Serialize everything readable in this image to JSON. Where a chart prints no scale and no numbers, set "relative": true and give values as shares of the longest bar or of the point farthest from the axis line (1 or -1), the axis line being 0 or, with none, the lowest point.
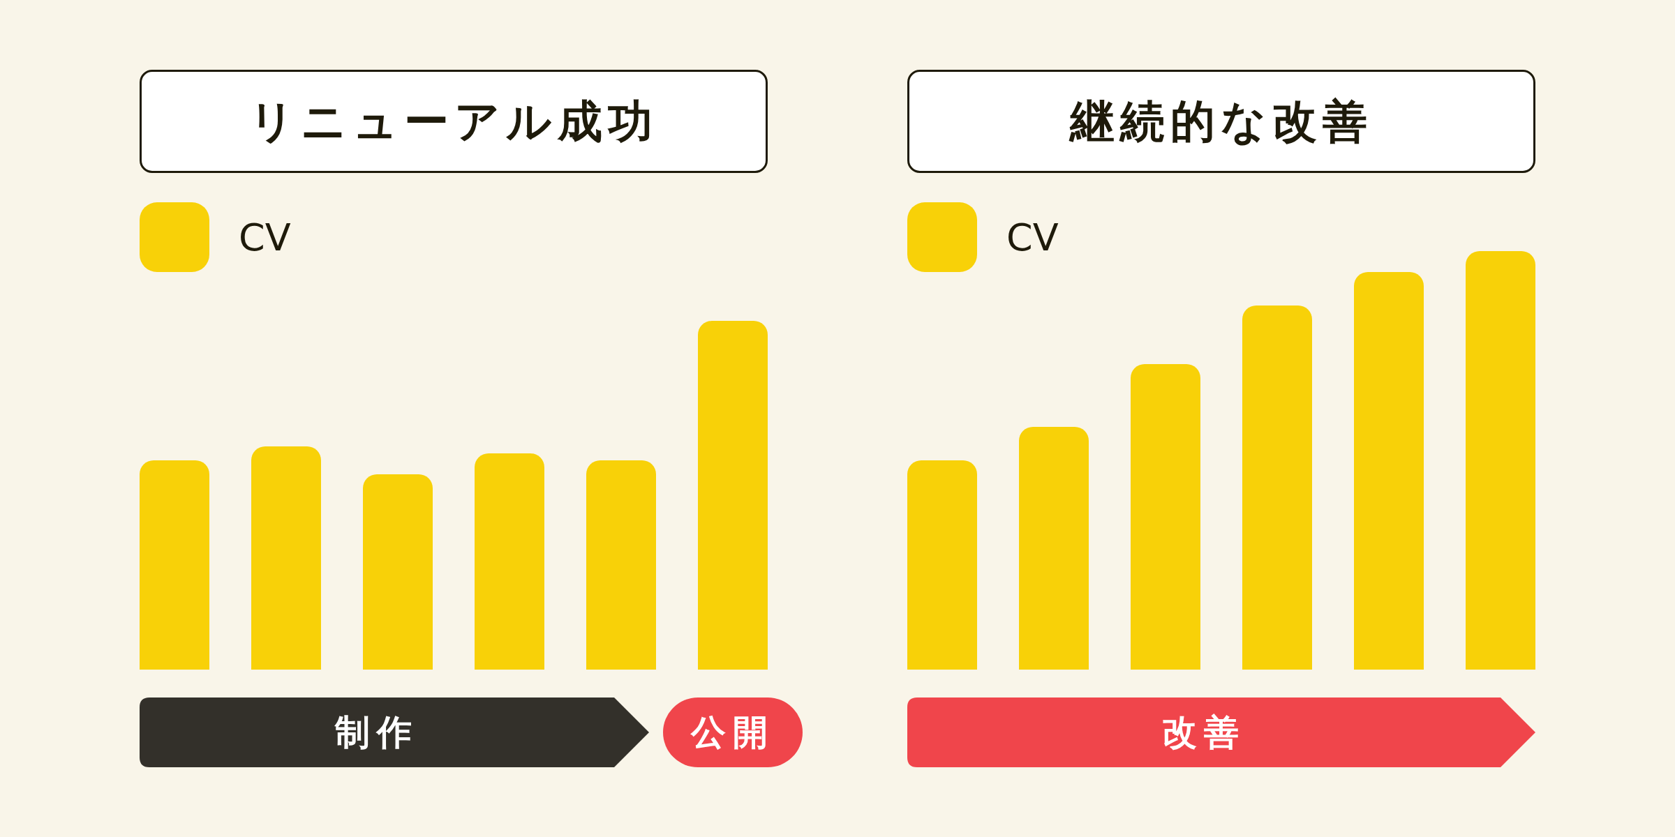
{
  "chart_data": [
    {
      "type": "bar",
      "title": "リニューアル成功",
      "categories": [
        null,
        null,
        null,
        null,
        null,
        null
      ],
      "series": [
        {
          "name": "CV",
          "color": "#f8d108",
          "values": [
            0.6,
            0.64,
            0.56,
            0.62,
            0.6,
            1
          ]
        }
      ],
      "relative": true,
      "legend": "top left",
      "annotations": [
        "制作",
        "公開"
      ]
    },
    {
      "type": "bar",
      "title": "継続的な改善",
      "categories": [
        null,
        null,
        null,
        null,
        null,
        null
      ],
      "series": [
        {
          "name": "CV",
          "color": "#f8d108",
          "values": [
            0.5,
            0.58,
            0.73,
            0.87,
            0.95,
            1
          ]
        }
      ],
      "relative": true,
      "legend": "top left",
      "annotations": [
        "改善"
      ]
    }
  ]
}
